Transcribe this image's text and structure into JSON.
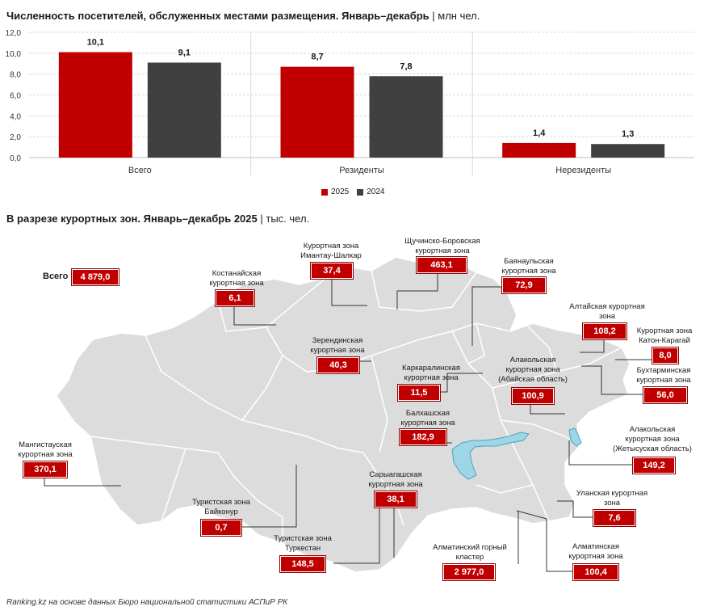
{
  "titles": {
    "top_main": "Численность посетителей, обслуженных местами размещения. Январь–декабрь",
    "top_unit": "| млн чел.",
    "map_main": "В разрезе курортных зон. Январь–декабрь 2025",
    "map_unit": "| тыс. чел."
  },
  "chart_data": {
    "type": "bar",
    "categories": [
      "Всего",
      "Резиденты",
      "Нерезиденты"
    ],
    "series": [
      {
        "name": "2025",
        "values": [
          10.1,
          8.7,
          1.4
        ],
        "labels": [
          "10,1",
          "8,7",
          "1,4"
        ],
        "color": "#c00000"
      },
      {
        "name": "2024",
        "values": [
          9.1,
          7.8,
          1.3
        ],
        "labels": [
          "9,1",
          "7,8",
          "1,3"
        ],
        "color": "#404040"
      }
    ],
    "ylim": [
      0,
      12
    ],
    "yticks": [
      "0,0",
      "2,0",
      "4,0",
      "6,0",
      "8,0",
      "10,0",
      "12,0"
    ],
    "grid": true,
    "legend": "bottom-center"
  },
  "map": {
    "total_label": "Всего",
    "total_value": "4 879,0",
    "zones": [
      {
        "id": "kostanay",
        "name": "Костанайская\nкурортная зона",
        "value": "6,1"
      },
      {
        "id": "imantau",
        "name": "Курортная зона\nИмантау-Шалкар",
        "value": "37,4"
      },
      {
        "id": "burabay",
        "name": "Щучинско-Боровская\nкурортная зона",
        "value": "463,1"
      },
      {
        "id": "bayanaul",
        "name": "Баянаульская\nкурортная зона",
        "value": "72,9"
      },
      {
        "id": "altai",
        "name": "Алтайская курортная\nзона",
        "value": "108,2"
      },
      {
        "id": "katon",
        "name": "Курортная зона\nКатон-Карагай",
        "value": "8,0"
      },
      {
        "id": "bukhtarma",
        "name": "Бухтарминская\nкурортная зона",
        "value": "56,0"
      },
      {
        "id": "zerenda",
        "name": "Зерендинская\nкурортная зона",
        "value": "40,3"
      },
      {
        "id": "karkaraly",
        "name": "Каркаралинская\nкурортная зона",
        "value": "11,5"
      },
      {
        "id": "alakol_abai",
        "name": "Алакольская\nкурортная зона\n(Абайская область)",
        "value": "100,9"
      },
      {
        "id": "balkhash",
        "name": "Балхашская\nкурортная зона",
        "value": "182,9"
      },
      {
        "id": "alakol_zhetysu",
        "name": "Алакольская\nкурортная зона\n(Жетысуская область)",
        "value": "149,2"
      },
      {
        "id": "mangystau",
        "name": "Мангистауская\nкурортная зона",
        "value": "370,1"
      },
      {
        "id": "saryagash",
        "name": "Сарыагашская\nкурортная зона",
        "value": "38,1"
      },
      {
        "id": "baikonur",
        "name": "Туристская зона\nБайконур",
        "value": "0,7"
      },
      {
        "id": "ulan",
        "name": "Уланская курортная\nзона",
        "value": "7,6"
      },
      {
        "id": "turkestan",
        "name": "Туристская зона\nТуркестан",
        "value": "148,5"
      },
      {
        "id": "almaty_mount",
        "name": "Алматинский горный\nкластер",
        "value": "2 977,0"
      },
      {
        "id": "almaty",
        "name": "Алматинская\nкурортная зона",
        "value": "100,4"
      }
    ]
  },
  "source": "Ranking.kz на основе данных Бюро национальной статистики АСПиР РК"
}
